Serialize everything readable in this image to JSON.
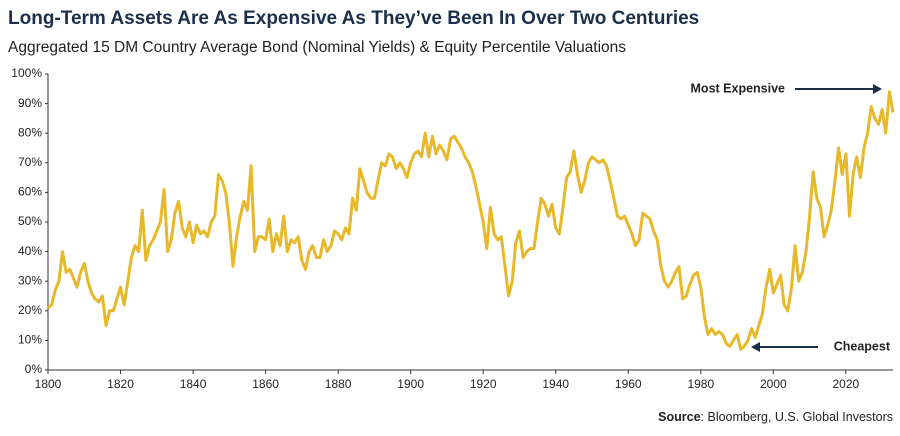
{
  "chart_data": {
    "type": "line",
    "title": "Long-Term Assets Are As Expensive As They’ve Been In Over Two Centuries",
    "subtitle": "Aggregated 15 DM Country Average Bond (Nominal Yields) & Equity Percentile Valuations",
    "annotations": [
      "Most Expensive",
      "Cheapest"
    ],
    "source_label": "Source",
    "source_text": ": Bloomberg, U.S. Global Investors",
    "color": "#e6b82a",
    "xlim": [
      1800,
      2033
    ],
    "xticks": [
      1800,
      1820,
      1840,
      1860,
      1880,
      1900,
      1920,
      1940,
      1960,
      1980,
      2000,
      2020
    ],
    "ylim": [
      0,
      100
    ],
    "yticks": [
      {
        "value": 0,
        "label": "0%"
      },
      {
        "value": 10,
        "label": "10%"
      },
      {
        "value": 20,
        "label": "20%"
      },
      {
        "value": 30,
        "label": "30%"
      },
      {
        "value": 40,
        "label": "40%"
      },
      {
        "value": 50,
        "label": "50%"
      },
      {
        "value": 60,
        "label": "60%"
      },
      {
        "value": 70,
        "label": "70%"
      },
      {
        "value": 80,
        "label": "80%"
      },
      {
        "value": 90,
        "label": "90%"
      },
      {
        "value": 100,
        "label": "100%"
      }
    ],
    "x": [
      1800,
      1801,
      1802,
      1803,
      1804,
      1805,
      1806,
      1807,
      1808,
      1809,
      1810,
      1811,
      1812,
      1813,
      1814,
      1815,
      1816,
      1817,
      1818,
      1819,
      1820,
      1821,
      1822,
      1823,
      1824,
      1825,
      1826,
      1827,
      1828,
      1829,
      1830,
      1831,
      1832,
      1833,
      1834,
      1835,
      1836,
      1837,
      1838,
      1839,
      1840,
      1841,
      1842,
      1843,
      1844,
      1845,
      1846,
      1847,
      1848,
      1849,
      1850,
      1851,
      1852,
      1853,
      1854,
      1855,
      1856,
      1857,
      1858,
      1859,
      1860,
      1861,
      1862,
      1863,
      1864,
      1865,
      1866,
      1867,
      1868,
      1869,
      1870,
      1871,
      1872,
      1873,
      1874,
      1875,
      1876,
      1877,
      1878,
      1879,
      1880,
      1881,
      1882,
      1883,
      1884,
      1885,
      1886,
      1887,
      1888,
      1889,
      1890,
      1891,
      1892,
      1893,
      1894,
      1895,
      1896,
      1897,
      1898,
      1899,
      1900,
      1901,
      1902,
      1903,
      1904,
      1905,
      1906,
      1907,
      1908,
      1909,
      1910,
      1911,
      1912,
      1913,
      1914,
      1915,
      1916,
      1917,
      1918,
      1919,
      1920,
      1921,
      1922,
      1923,
      1924,
      1925,
      1926,
      1927,
      1928,
      1929,
      1930,
      1931,
      1932,
      1933,
      1934,
      1935,
      1936,
      1937,
      1938,
      1939,
      1940,
      1941,
      1942,
      1943,
      1944,
      1945,
      1946,
      1947,
      1948,
      1949,
      1950,
      1951,
      1952,
      1953,
      1954,
      1955,
      1956,
      1957,
      1958,
      1959,
      1960,
      1961,
      1962,
      1963,
      1964,
      1965,
      1966,
      1967,
      1968,
      1969,
      1970,
      1971,
      1972,
      1973,
      1974,
      1975,
      1976,
      1977,
      1978,
      1979,
      1980,
      1981,
      1982,
      1983,
      1984,
      1985,
      1986,
      1987,
      1988,
      1989,
      1990,
      1991,
      1992,
      1993,
      1994,
      1995,
      1996,
      1997,
      1998,
      1999,
      2000,
      2001,
      2002,
      2003,
      2004,
      2005,
      2006,
      2007,
      2008,
      2009,
      2010,
      2011,
      2012,
      2013,
      2014,
      2015,
      2016,
      2017,
      2018,
      2019,
      2020,
      2021,
      2022,
      2023,
      2024,
      2025,
      2026,
      2027,
      2028,
      2029,
      2030,
      2031,
      2032,
      2033
    ],
    "values": [
      21,
      22,
      27,
      30,
      40,
      33,
      34,
      31,
      28,
      33,
      36,
      30,
      26,
      24,
      23,
      25,
      15,
      20,
      20,
      24,
      28,
      22,
      30,
      38,
      42,
      40,
      54,
      37,
      42,
      44,
      47,
      50,
      61,
      40,
      44,
      53,
      57,
      48,
      45,
      50,
      43,
      49,
      46,
      47,
      45,
      50,
      52,
      66,
      64,
      60,
      50,
      35,
      45,
      52,
      57,
      54,
      69,
      40,
      45,
      45,
      44,
      51,
      40,
      46,
      42,
      52,
      40,
      44,
      43,
      45,
      37,
      34,
      40,
      42,
      38,
      38,
      44,
      40,
      42,
      47,
      46,
      44,
      48,
      46,
      58,
      54,
      68,
      64,
      60,
      58,
      58,
      64,
      70,
      69,
      73,
      72,
      68,
      70,
      68,
      65,
      70,
      73,
      74,
      72,
      80,
      72,
      79,
      73,
      76,
      74,
      71,
      78,
      79,
      77,
      75,
      72,
      70,
      67,
      62,
      56,
      50,
      41,
      55,
      46,
      44,
      45,
      35,
      25,
      30,
      43,
      47,
      38,
      40,
      41,
      41,
      50,
      58,
      56,
      52,
      56,
      48,
      46,
      55,
      65,
      67,
      74,
      66,
      60,
      64,
      70,
      72,
      71,
      70,
      71,
      69,
      64,
      58,
      52,
      51,
      52,
      49,
      46,
      42,
      44,
      53,
      52,
      51,
      47,
      44,
      35,
      30,
      28,
      30,
      33,
      35,
      24,
      25,
      29,
      32,
      33,
      28,
      18,
      12,
      14,
      12,
      13,
      12,
      9,
      8,
      10,
      12,
      7,
      8,
      10,
      14,
      11,
      15,
      19,
      28,
      34,
      26,
      29,
      32,
      22,
      20,
      28,
      42,
      30,
      33,
      40,
      52,
      67,
      58,
      55,
      45,
      49,
      54,
      64,
      75,
      66,
      73,
      52,
      66,
      72,
      65,
      75,
      80,
      89,
      85,
      83,
      88,
      80,
      94,
      87
    ]
  }
}
